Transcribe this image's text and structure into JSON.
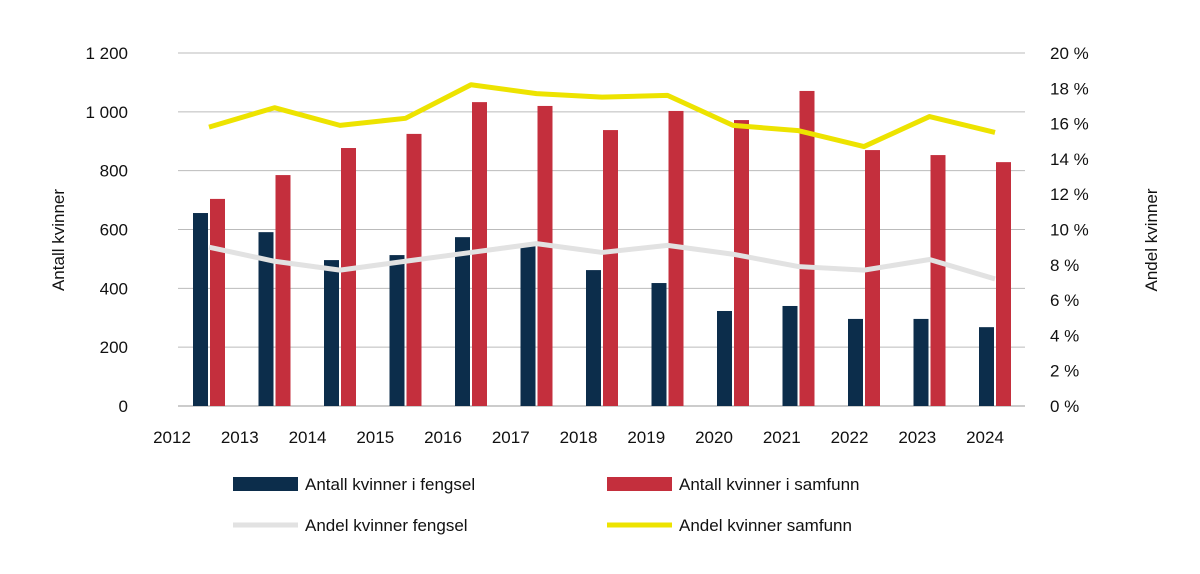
{
  "chart_data": {
    "type": "bar",
    "title": "",
    "categories": [
      "2012",
      "2013",
      "2014",
      "2015",
      "2016",
      "2017",
      "2018",
      "2019",
      "2020",
      "2021",
      "2022",
      "2023",
      "2024"
    ],
    "ylabel": "Antall kvinner",
    "y2label": "Andel kvinner",
    "ylim": [
      0,
      1200
    ],
    "y2lim": [
      0,
      20
    ],
    "yticks": [
      "0",
      "200",
      "400",
      "600",
      "800",
      "1 000",
      "1 200"
    ],
    "y2ticks": [
      "0 %",
      "2 %",
      "4 %",
      "6 %",
      "8 %",
      "10 %",
      "12 %",
      "14 %",
      "16 %",
      "18 %",
      "20 %"
    ],
    "grid": true,
    "legend_placement": "bottom",
    "series": [
      {
        "name": "Antall kvinner i fengsel",
        "type": "bar",
        "axis": "left",
        "color": "#0c2d4b",
        "values": [
          656,
          591,
          496,
          513,
          574,
          551,
          462,
          418,
          323,
          340,
          296,
          296,
          268
        ]
      },
      {
        "name": "Antall kvinner i samfunn",
        "type": "bar",
        "axis": "left",
        "color": "#c42f3d",
        "values": [
          704,
          785,
          877,
          925,
          1033,
          1020,
          938,
          1003,
          972,
          1071,
          870,
          853,
          829
        ]
      },
      {
        "name": "Andel kvinner fengsel",
        "type": "line",
        "axis": "right",
        "color": "#e2e2e2",
        "values": [
          9.0,
          8.2,
          7.7,
          8.2,
          8.7,
          9.2,
          8.7,
          9.1,
          8.6,
          7.9,
          7.7,
          8.3,
          7.2
        ]
      },
      {
        "name": "Andel kvinner samfunn",
        "type": "line",
        "axis": "right",
        "color": "#ede300",
        "values": [
          15.8,
          16.9,
          15.9,
          16.3,
          18.2,
          17.7,
          17.5,
          17.6,
          15.9,
          15.6,
          14.7,
          16.4,
          15.5
        ]
      }
    ]
  }
}
